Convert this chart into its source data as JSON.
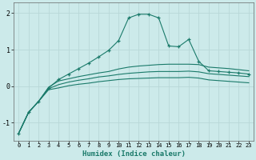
{
  "x": [
    0,
    1,
    2,
    3,
    4,
    5,
    6,
    7,
    8,
    9,
    10,
    11,
    12,
    13,
    14,
    15,
    16,
    17,
    18,
    19,
    20,
    21,
    22,
    23
  ],
  "y_main": [
    -1.3,
    -0.72,
    -0.42,
    -0.05,
    0.18,
    0.33,
    0.48,
    0.63,
    0.8,
    0.98,
    1.25,
    1.87,
    1.97,
    1.97,
    1.87,
    1.1,
    1.08,
    1.28,
    0.68,
    0.42,
    0.4,
    0.38,
    0.36,
    0.33
  ],
  "y_upper": [
    -1.3,
    -0.72,
    -0.42,
    -0.03,
    0.14,
    0.2,
    0.26,
    0.31,
    0.36,
    0.4,
    0.47,
    0.52,
    0.55,
    0.57,
    0.59,
    0.6,
    0.6,
    0.6,
    0.59,
    0.52,
    0.5,
    0.48,
    0.45,
    0.42
  ],
  "y_mid": [
    -1.3,
    -0.72,
    -0.42,
    -0.07,
    0.04,
    0.11,
    0.16,
    0.2,
    0.25,
    0.28,
    0.32,
    0.35,
    0.37,
    0.39,
    0.4,
    0.4,
    0.4,
    0.41,
    0.39,
    0.34,
    0.32,
    0.3,
    0.28,
    0.26
  ],
  "y_lower": [
    -1.3,
    -0.72,
    -0.42,
    -0.1,
    -0.05,
    0.01,
    0.05,
    0.08,
    0.12,
    0.15,
    0.18,
    0.2,
    0.21,
    0.22,
    0.23,
    0.23,
    0.23,
    0.24,
    0.22,
    0.17,
    0.15,
    0.13,
    0.11,
    0.09
  ],
  "line_color": "#1a7a6a",
  "bg_color": "#cceaea",
  "grid_color": "#b8d8d8",
  "xlabel": "Humidex (Indice chaleur)",
  "ylim": [
    -1.5,
    2.3
  ],
  "xlim": [
    -0.5,
    23.5
  ],
  "yticks": [
    -1,
    0,
    1,
    2
  ],
  "xticks": [
    0,
    1,
    2,
    3,
    4,
    5,
    6,
    7,
    8,
    9,
    10,
    11,
    12,
    13,
    14,
    15,
    16,
    17,
    18,
    19,
    20,
    21,
    22,
    23
  ]
}
